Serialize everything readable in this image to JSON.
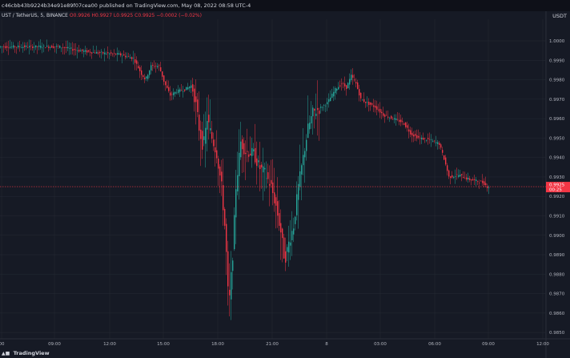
{
  "header": {
    "publish_text": "c46cbb43b9224b34e91e89f07cea00 published on TradingView.com, May 08, 2022 08:58 UTC-4"
  },
  "legend": {
    "symbol": "UST / TetherUS, 5, BINANCE",
    "ohlc_text": "O0.9926 H0.9927 L0.9925 C0.9925 −0.0002 (−0.02%)"
  },
  "currency": "USDT",
  "brand": {
    "icon": "tradingview-logo-icon",
    "name": "TradingView"
  },
  "colors": {
    "up": "#26a69a",
    "down": "#f23645",
    "background": "#161a25",
    "grid": "#2a2e39"
  },
  "price_tag": {
    "value": "0.9925",
    "countdown": "00:25"
  },
  "chart_data": {
    "type": "candlestick",
    "title": "",
    "xlabel": "",
    "ylabel": "",
    "ylim": [
      0.9848,
      1.0007
    ],
    "y_ticks": [
      "1.0000",
      "0.9990",
      "0.9980",
      "0.9970",
      "0.9960",
      "0.9950",
      "0.9940",
      "0.9930",
      "0.9920",
      "0.9910",
      "0.9900",
      "0.9890",
      "0.9880",
      "0.9870",
      "0.9860",
      "0.9850"
    ],
    "x_ticks": [
      "00",
      "09:00",
      "12:00",
      "15:00",
      "18:00",
      "21:00",
      "8",
      "03:00",
      "06:00",
      "09:00",
      "12:00"
    ],
    "grid": true,
    "series_path": [
      [
        0,
        0.9997
      ],
      [
        20,
        0.9997
      ],
      [
        75,
        0.9997
      ],
      [
        100,
        0.9995
      ],
      [
        120,
        0.9994
      ],
      [
        150,
        0.9993
      ],
      [
        168,
        0.9991
      ],
      [
        178,
        0.9983
      ],
      [
        183,
        0.998
      ],
      [
        190,
        0.9987
      ],
      [
        200,
        0.9987
      ],
      [
        207,
        0.9978
      ],
      [
        214,
        0.9972
      ],
      [
        222,
        0.9974
      ],
      [
        232,
        0.9975
      ],
      [
        240,
        0.9977
      ],
      [
        245,
        0.997
      ],
      [
        250,
        0.9955
      ],
      [
        255,
        0.9945
      ],
      [
        260,
        0.996
      ],
      [
        266,
        0.995
      ],
      [
        272,
        0.9942
      ],
      [
        278,
        0.9925
      ],
      [
        283,
        0.99
      ],
      [
        287,
        0.9862
      ],
      [
        292,
        0.989
      ],
      [
        296,
        0.9925
      ],
      [
        302,
        0.9948
      ],
      [
        308,
        0.9943
      ],
      [
        318,
        0.9942
      ],
      [
        325,
        0.9935
      ],
      [
        332,
        0.9932
      ],
      [
        340,
        0.9925
      ],
      [
        346,
        0.9915
      ],
      [
        352,
        0.9902
      ],
      [
        357,
        0.9887
      ],
      [
        362,
        0.9896
      ],
      [
        368,
        0.9905
      ],
      [
        374,
        0.9925
      ],
      [
        380,
        0.994
      ],
      [
        386,
        0.9955
      ],
      [
        392,
        0.9963
      ],
      [
        400,
        0.9965
      ],
      [
        410,
        0.9968
      ],
      [
        420,
        0.9975
      ],
      [
        428,
        0.9978
      ],
      [
        434,
        0.9976
      ],
      [
        440,
        0.9982
      ],
      [
        446,
        0.9978
      ],
      [
        452,
        0.997
      ],
      [
        460,
        0.9968
      ],
      [
        470,
        0.9966
      ],
      [
        480,
        0.9962
      ],
      [
        492,
        0.996
      ],
      [
        505,
        0.9958
      ],
      [
        515,
        0.9952
      ],
      [
        525,
        0.995
      ],
      [
        538,
        0.9949
      ],
      [
        550,
        0.9947
      ],
      [
        557,
        0.9938
      ],
      [
        562,
        0.993
      ],
      [
        575,
        0.9931
      ],
      [
        585,
        0.9929
      ],
      [
        595,
        0.9928
      ],
      [
        605,
        0.9927
      ],
      [
        610,
        0.9925
      ]
    ]
  }
}
